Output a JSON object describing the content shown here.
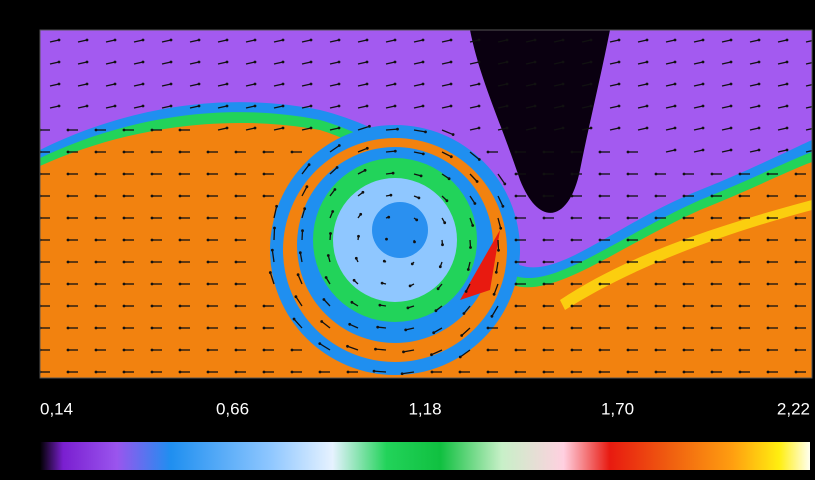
{
  "chart_data": {
    "type": "colorbar-field",
    "clim": [
      0.14,
      2.22
    ],
    "ticks": [
      {
        "value": 0.14,
        "label": "0,14"
      },
      {
        "value": 0.66,
        "label": "0,66"
      },
      {
        "value": 1.18,
        "label": "1,18"
      },
      {
        "value": 1.7,
        "label": "1,70"
      },
      {
        "value": 2.22,
        "label": "2,22"
      }
    ]
  }
}
